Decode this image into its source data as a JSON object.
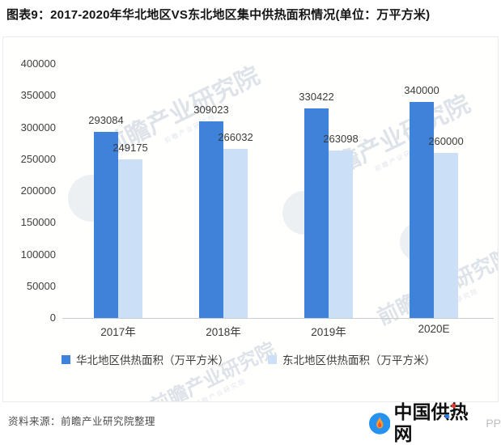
{
  "title": "图表9：2017-2020年华北地区VS东北地区集中供热面积情况(单位：万平方米)",
  "chart_data": {
    "type": "bar",
    "categories": [
      "2017年",
      "2018年",
      "2019年",
      "2020E"
    ],
    "series": [
      {
        "key": "north-china",
        "name": "华北地区供热面积（万平方米）",
        "color": "#3e82d9",
        "values": [
          293084,
          309023,
          330422,
          340000
        ]
      },
      {
        "key": "northeast-china",
        "name": "东北地区供热面积（万平方米）",
        "color": "#cbdff6",
        "values": [
          249175,
          266032,
          263098,
          260000
        ]
      }
    ],
    "ylim": [
      0,
      400000
    ],
    "yticks": [
      0,
      50000,
      100000,
      150000,
      200000,
      250000,
      300000,
      350000,
      400000
    ],
    "grid": false,
    "legend_position": "bottom"
  },
  "watermark": {
    "text": "前瞻产业研究院"
  },
  "footer": {
    "source": "资料来源：前瞻产业研究院整理",
    "logo_text": "中国供热网",
    "logo_suffix": "PP"
  }
}
